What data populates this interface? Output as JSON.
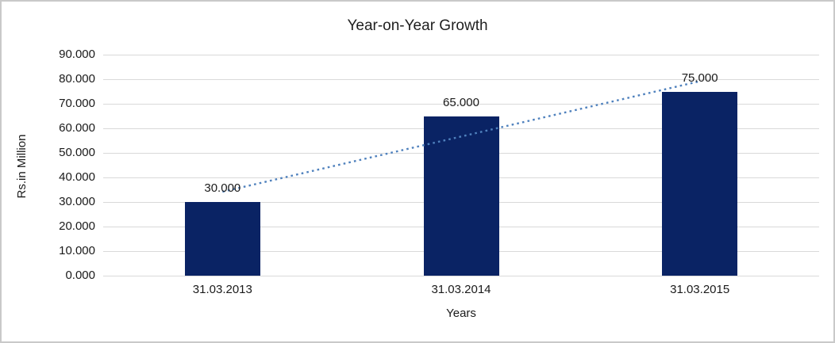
{
  "window": {
    "background_color": "#ffffff",
    "border_color": "#c9c9c9"
  },
  "chart_data": {
    "type": "bar",
    "title": "Year-on-Year Growth",
    "xlabel": "Years",
    "ylabel": "Rs.in Million",
    "categories": [
      "31.03.2013",
      "31.03.2014",
      "31.03.2015"
    ],
    "values": [
      30000,
      65000,
      75000
    ],
    "value_labels": [
      "30.000",
      "65.000",
      "75.000"
    ],
    "ylim": [
      0,
      90000
    ],
    "y_ticks": [
      0,
      10000,
      20000,
      30000,
      40000,
      50000,
      60000,
      70000,
      80000,
      90000
    ],
    "y_tick_labels": [
      "0.000",
      "10.000",
      "20.000",
      "30.000",
      "40.000",
      "50.000",
      "60.000",
      "70.000",
      "80.000",
      "90.000"
    ],
    "grid": "horizontal",
    "legend": "none",
    "bar_color": "#0a2364",
    "gridline_color": "#d9d9d9",
    "text_color": "#1a1a1a",
    "trendline": {
      "type": "linear",
      "style": "dotted",
      "color": "#4f81bd",
      "start_value": 34167,
      "end_value": 79167
    }
  }
}
